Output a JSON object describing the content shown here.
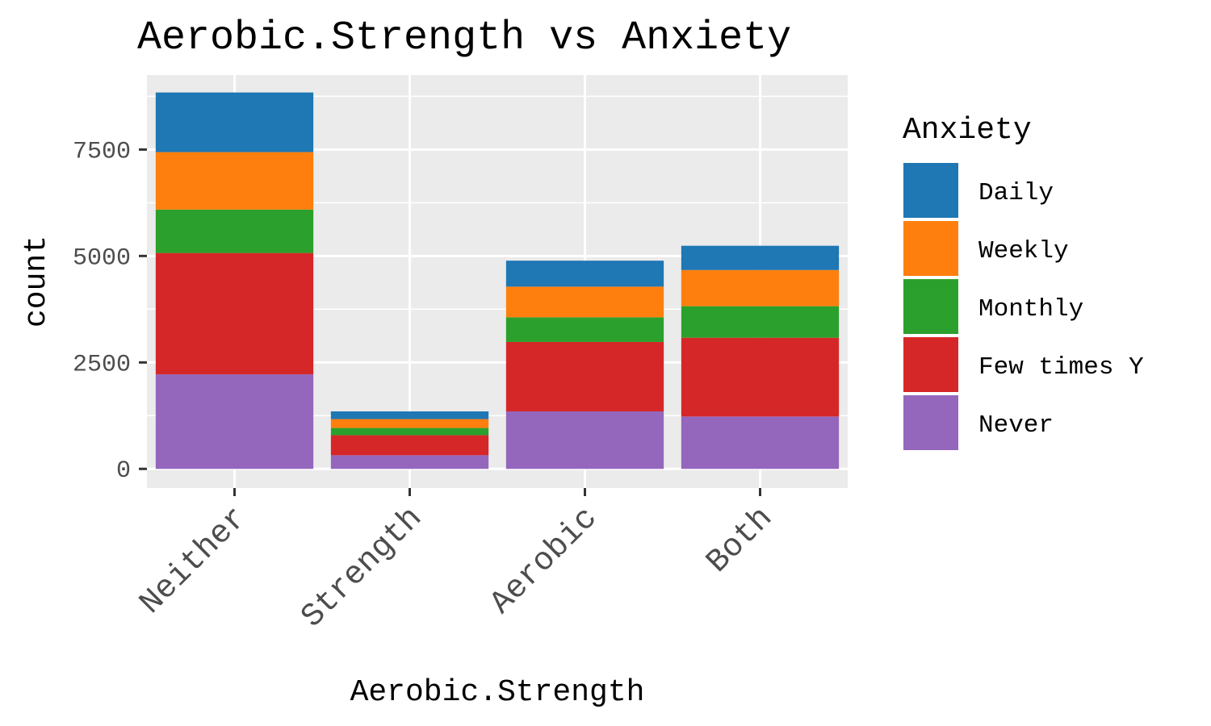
{
  "chart_data": {
    "type": "bar",
    "stacked": true,
    "title": "Aerobic.Strength vs Anxiety",
    "xlabel": "Aerobic.Strength",
    "ylabel": "count",
    "categories": [
      "Neither",
      "Strength",
      "Aerobic",
      "Both"
    ],
    "ylim": [
      -450,
      9250
    ],
    "yticks": [
      0,
      2500,
      5000,
      7500
    ],
    "ytick_labels": [
      "0",
      "2500",
      "5000",
      "7500"
    ],
    "grid": true,
    "legend": {
      "title": "Anxiety",
      "position": "right"
    },
    "stack_order_bottom_to_top": [
      "Never",
      "Few times Y",
      "Monthly",
      "Weekly",
      "Daily"
    ],
    "series": [
      {
        "name": "Daily",
        "color": "#1F77B4",
        "values": [
          1400,
          180,
          610,
          570
        ]
      },
      {
        "name": "Weekly",
        "color": "#FF7F0E",
        "values": [
          1350,
          210,
          720,
          850
        ]
      },
      {
        "name": "Monthly",
        "color": "#2CA02C",
        "values": [
          1020,
          170,
          580,
          740
        ]
      },
      {
        "name": "Few times Y",
        "color": "#D62728",
        "values": [
          2850,
          470,
          1630,
          1850
        ]
      },
      {
        "name": "Never",
        "color": "#9467BD",
        "values": [
          2220,
          320,
          1350,
          1230
        ]
      }
    ]
  }
}
